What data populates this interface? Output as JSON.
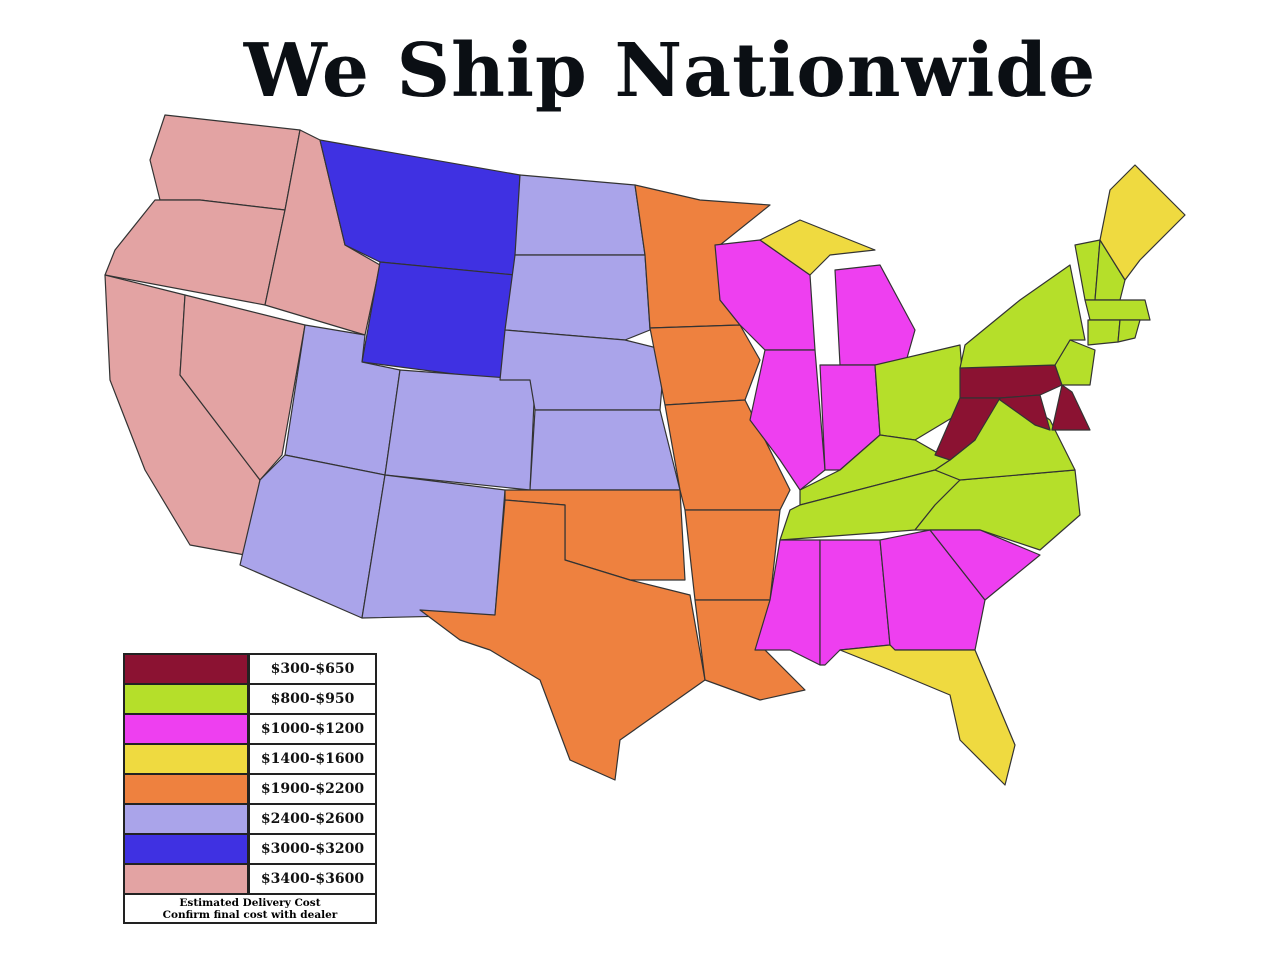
{
  "title": "We Ship Nationwide",
  "legend": {
    "tiers": [
      {
        "label": "$300-$650",
        "color": "#8b1232"
      },
      {
        "label": "$800-$950",
        "color": "#b5df2a"
      },
      {
        "label": "$1000-$1200",
        "color": "#ee3ff0"
      },
      {
        "label": "$1400-$1600",
        "color": "#efda40"
      },
      {
        "label": "$1900-$2200",
        "color": "#ee813f"
      },
      {
        "label": "$2400-$2600",
        "color": "#aaa4ea"
      },
      {
        "label": "$3000-$3200",
        "color": "#3f31e2"
      },
      {
        "label": "$3400-$3600",
        "color": "#e3a3a3"
      }
    ],
    "note_line1": "Estimated Delivery Cost",
    "note_line2": "Confirm final cost with dealer"
  },
  "state_tiers": {
    "WV": 0,
    "MD": 0,
    "DE": 0,
    "PA": 0,
    "NY": 1,
    "VT": 1,
    "NH": 1,
    "MA": 1,
    "CT": 1,
    "RI": 1,
    "NJ": 1,
    "OH": 1,
    "KY": 1,
    "VA": 1,
    "TN": 1,
    "NC": 1,
    "WI": 2,
    "MI": 2,
    "IL": 2,
    "IN": 2,
    "MS": 2,
    "AL": 2,
    "GA": 2,
    "SC": 2,
    "ME": 3,
    "MI-UP": 3,
    "FL": 3,
    "MN": 4,
    "IA": 4,
    "MO": 4,
    "AR": 4,
    "LA": 4,
    "OK": 4,
    "TX": 4,
    "ND": 5,
    "SD": 5,
    "NE": 5,
    "KS": 5,
    "CO": 5,
    "UT": 5,
    "AZ": 5,
    "NM": 5,
    "MT": 6,
    "WY": 6,
    "WA": 7,
    "OR": 7,
    "CA": 7,
    "ID": 7,
    "NV": 7
  }
}
